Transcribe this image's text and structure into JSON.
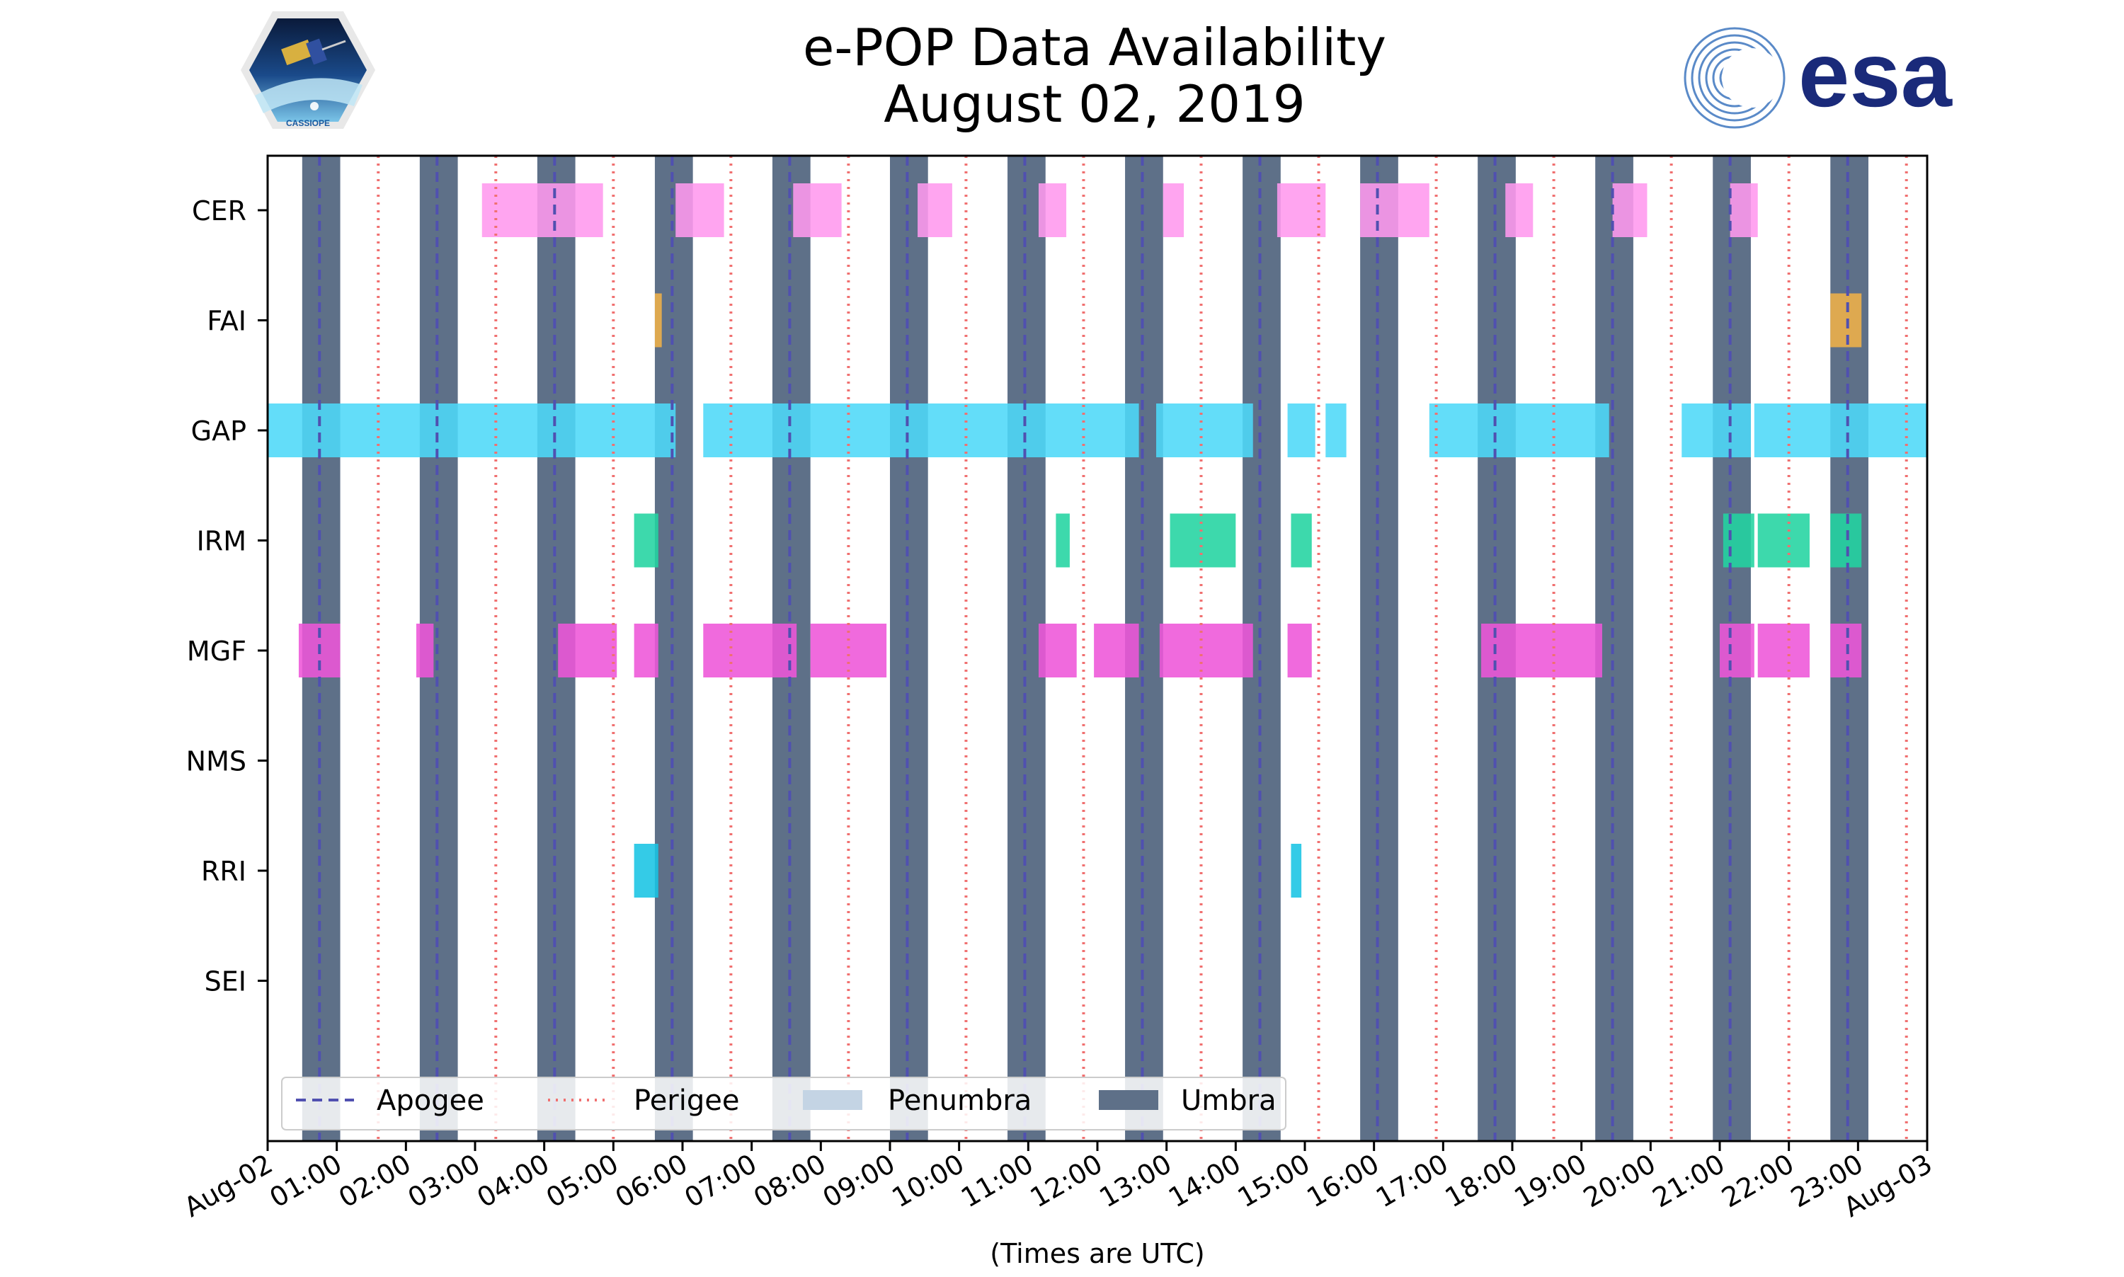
{
  "chart_data": {
    "type": "timeline",
    "title": [
      "e-POP Data Availability",
      "August 02, 2019"
    ],
    "xlabel": "(Times are UTC)",
    "x_range_hours": [
      0,
      24
    ],
    "x_tick_labels": [
      "Aug-02",
      "01:00",
      "02:00",
      "03:00",
      "04:00",
      "05:00",
      "06:00",
      "07:00",
      "08:00",
      "09:00",
      "10:00",
      "11:00",
      "12:00",
      "13:00",
      "14:00",
      "15:00",
      "16:00",
      "17:00",
      "18:00",
      "19:00",
      "20:00",
      "21:00",
      "22:00",
      "23:00",
      "Aug-03"
    ],
    "y_categories": [
      "CER",
      "FAI",
      "GAP",
      "IRM",
      "MGF",
      "NMS",
      "RRI",
      "SEI"
    ],
    "colors": {
      "CER": "#ff99ee",
      "FAI": "#f0b048",
      "GAP": "#4dd8f8",
      "IRM": "#22d4a0",
      "MGF": "#ee55d8",
      "NMS": "#888888",
      "RRI": "#18c4e4",
      "SEI": "#888888",
      "umbra": "#5e7088",
      "penumbra": "#c4d4e4",
      "apogee": "#5050b0",
      "perigee": "#f07070"
    },
    "series": [
      {
        "name": "CER",
        "intervals_hours": [
          [
            3.1,
            4.85
          ],
          [
            5.9,
            6.6
          ],
          [
            7.6,
            8.3
          ],
          [
            9.4,
            9.9
          ],
          [
            11.15,
            11.55
          ],
          [
            12.95,
            13.25
          ],
          [
            14.6,
            15.3
          ],
          [
            15.8,
            16.8
          ],
          [
            17.9,
            18.3
          ],
          [
            19.45,
            19.95
          ],
          [
            21.15,
            21.55
          ]
        ]
      },
      {
        "name": "FAI",
        "intervals_hours": [
          [
            5.6,
            5.7
          ],
          [
            22.6,
            23.05
          ]
        ]
      },
      {
        "name": "GAP",
        "intervals_hours": [
          [
            0.0,
            5.9
          ],
          [
            6.3,
            12.6
          ],
          [
            12.85,
            14.25
          ],
          [
            14.75,
            15.15
          ],
          [
            15.3,
            15.6
          ],
          [
            16.8,
            19.4
          ],
          [
            20.45,
            21.45
          ],
          [
            21.5,
            24.0
          ]
        ]
      },
      {
        "name": "IRM",
        "intervals_hours": [
          [
            5.3,
            5.65
          ],
          [
            11.4,
            11.6
          ],
          [
            13.05,
            14.0
          ],
          [
            14.8,
            15.1
          ],
          [
            21.05,
            21.5
          ],
          [
            21.55,
            22.3
          ],
          [
            22.6,
            23.05
          ]
        ]
      },
      {
        "name": "MGF",
        "intervals_hours": [
          [
            0.45,
            1.05
          ],
          [
            2.15,
            2.4
          ],
          [
            4.2,
            5.05
          ],
          [
            5.3,
            5.65
          ],
          [
            6.3,
            7.65
          ],
          [
            7.85,
            8.95
          ],
          [
            11.15,
            11.7
          ],
          [
            11.95,
            12.6
          ],
          [
            12.9,
            14.25
          ],
          [
            14.75,
            15.1
          ],
          [
            17.55,
            19.3
          ],
          [
            21.0,
            21.5
          ],
          [
            21.55,
            22.3
          ],
          [
            22.6,
            23.05
          ]
        ]
      },
      {
        "name": "NMS",
        "intervals_hours": []
      },
      {
        "name": "RRI",
        "intervals_hours": [
          [
            5.3,
            5.65
          ],
          [
            14.8,
            14.95
          ]
        ]
      },
      {
        "name": "SEI",
        "intervals_hours": []
      }
    ],
    "umbra_hours": [
      [
        0.5,
        1.05
      ],
      [
        2.2,
        2.75
      ],
      [
        3.9,
        4.45
      ],
      [
        5.6,
        6.15
      ],
      [
        7.3,
        7.85
      ],
      [
        9.0,
        9.55
      ],
      [
        10.7,
        11.25
      ],
      [
        12.4,
        12.95
      ],
      [
        14.1,
        14.65
      ],
      [
        15.8,
        16.35
      ],
      [
        17.5,
        18.05
      ],
      [
        19.2,
        19.75
      ],
      [
        20.9,
        21.45
      ],
      [
        22.6,
        23.15
      ]
    ],
    "apogee_hours": [
      0.75,
      2.45,
      4.15,
      5.85,
      7.55,
      9.25,
      10.95,
      12.65,
      14.35,
      16.05,
      17.75,
      19.45,
      21.15,
      22.85
    ],
    "perigee_hours": [
      1.6,
      3.3,
      5.0,
      6.7,
      8.4,
      10.1,
      11.8,
      13.5,
      15.2,
      16.9,
      18.6,
      20.3,
      22.0,
      23.7
    ],
    "legend": {
      "placement": "bottom-left",
      "entries": [
        "Apogee",
        "Perigee",
        "Penumbra",
        "Umbra"
      ]
    }
  },
  "logos": {
    "left": "CASSIOPE",
    "right": "esa"
  }
}
